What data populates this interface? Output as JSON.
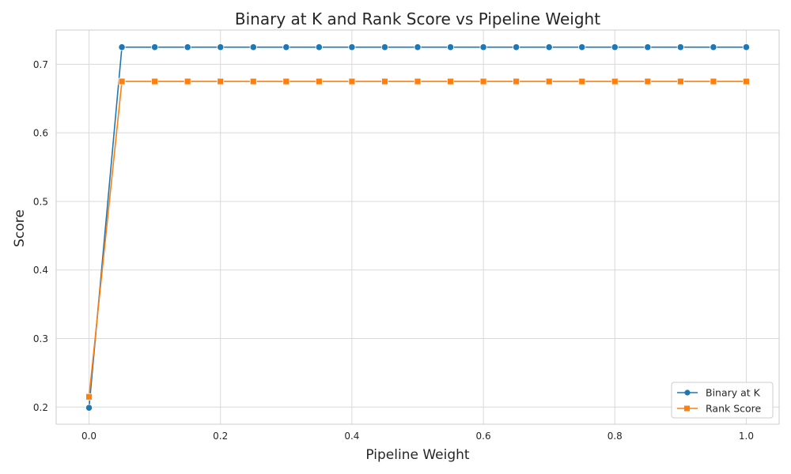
{
  "chart_data": {
    "type": "line",
    "title": "Binary at K and Rank Score vs Pipeline Weight",
    "xlabel": "Pipeline Weight",
    "ylabel": "Score",
    "x": [
      0.0,
      0.05,
      0.1,
      0.15,
      0.2,
      0.25,
      0.3,
      0.35,
      0.4,
      0.45,
      0.5,
      0.55,
      0.6,
      0.65,
      0.7,
      0.75,
      0.8,
      0.85,
      0.9,
      0.95,
      1.0
    ],
    "xlim": [
      -0.05,
      1.05
    ],
    "ylim": [
      0.175,
      0.75
    ],
    "xticks": [
      0.0,
      0.2,
      0.4,
      0.6,
      0.8,
      1.0
    ],
    "xtick_labels": [
      "0.0",
      "0.2",
      "0.4",
      "0.6",
      "0.8",
      "1.0"
    ],
    "yticks": [
      0.2,
      0.3,
      0.4,
      0.5,
      0.6,
      0.7
    ],
    "ytick_labels": [
      "0.2",
      "0.3",
      "0.4",
      "0.5",
      "0.6",
      "0.7"
    ],
    "grid": true,
    "legend_position": "bottom-right",
    "series": [
      {
        "name": "Binary at K",
        "color": "#1f77b4",
        "marker": "circle",
        "values": [
          0.199,
          0.725,
          0.725,
          0.725,
          0.725,
          0.725,
          0.725,
          0.725,
          0.725,
          0.725,
          0.725,
          0.725,
          0.725,
          0.725,
          0.725,
          0.725,
          0.725,
          0.725,
          0.725,
          0.725,
          0.725
        ]
      },
      {
        "name": "Rank Score",
        "color": "#ff7f0e",
        "marker": "square",
        "values": [
          0.215,
          0.675,
          0.675,
          0.675,
          0.675,
          0.675,
          0.675,
          0.675,
          0.675,
          0.675,
          0.675,
          0.675,
          0.675,
          0.675,
          0.675,
          0.675,
          0.675,
          0.675,
          0.675,
          0.675,
          0.675
        ]
      }
    ]
  }
}
